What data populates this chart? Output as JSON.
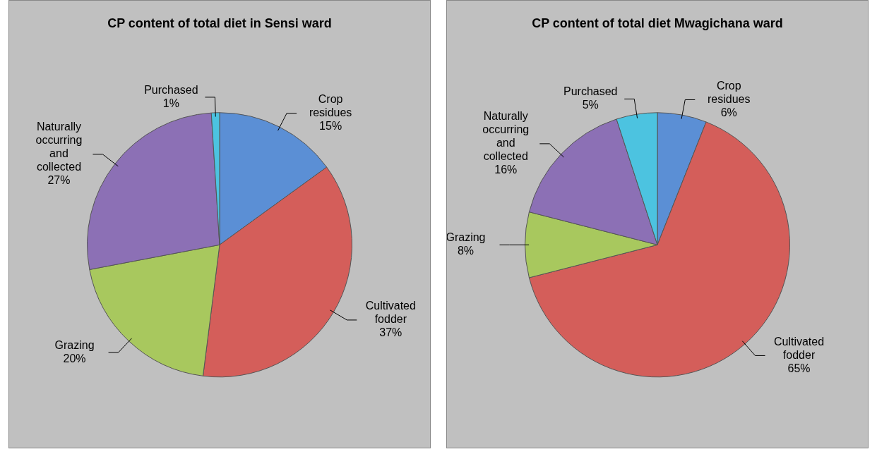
{
  "chart_data": [
    {
      "type": "pie",
      "title": "CP content of total diet in Sensi ward",
      "categories": [
        "Crop residues",
        "Cultivated fodder",
        "Grazing",
        "Naturally occurring and collected",
        "Purchased"
      ],
      "values": [
        15,
        37,
        20,
        27,
        1
      ],
      "value_labels": [
        "15%",
        "37%",
        "20%",
        "27%",
        "1%"
      ],
      "colors": [
        "#5b8fd5",
        "#d45e5a",
        "#a8c85e",
        "#8c70b5",
        "#4cc3e0"
      ],
      "legend": false
    },
    {
      "type": "pie",
      "title": "CP content of total diet Mwagichana ward",
      "categories": [
        "Crop residues",
        "Cultivated fodder",
        "Grazing",
        "Naturally occurring and collected",
        "Purchased"
      ],
      "values": [
        6,
        65,
        8,
        16,
        5
      ],
      "value_labels": [
        "6%",
        "65%",
        "8%",
        "16%",
        "5%"
      ],
      "colors": [
        "#5b8fd5",
        "#d45e5a",
        "#a8c85e",
        "#8c70b5",
        "#4cc3e0"
      ],
      "legend": false
    }
  ]
}
